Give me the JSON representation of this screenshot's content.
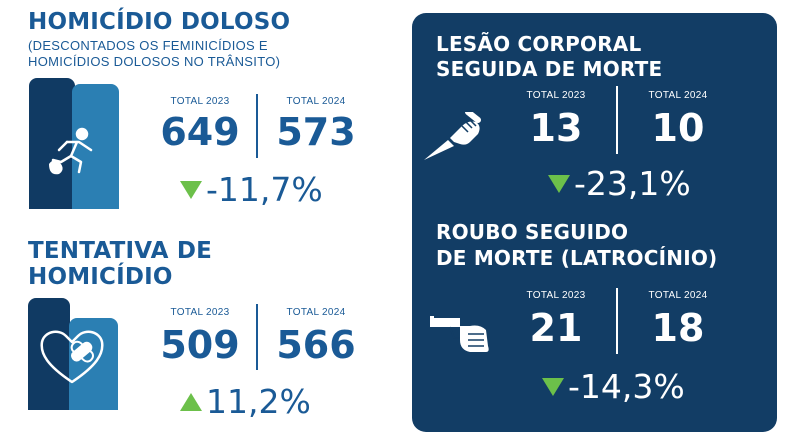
{
  "homicidio": {
    "title": "HOMICÍDIO DOLOSO",
    "subtitle_line1": "(DESCONTADOS OS FEMINICÍDIOS E",
    "subtitle_line2": "HOMICÍDIOS DOLOSOS NO TRÂNSITO)",
    "label_2023": "TOTAL 2023",
    "label_2024": "TOTAL 2024",
    "value_2023": "649",
    "value_2024": "573",
    "change": "-11,7%",
    "change_direction": "down",
    "icon": "fleeing-person-icon"
  },
  "tentativa": {
    "title_line1": "TENTATIVA DE",
    "title_line2": "HOMICÍDIO",
    "label_2023": "TOTAL 2023",
    "label_2024": "TOTAL 2024",
    "value_2023": "509",
    "value_2024": "566",
    "change": "11,2%",
    "change_direction": "up",
    "icon": "bandaged-heart-icon"
  },
  "lesao": {
    "title_line1": "LESÃO CORPORAL",
    "title_line2": "SEGUIDA DE MORTE",
    "label_2023": "TOTAL  2023",
    "label_2024": "TOTAL  2024",
    "value_2023": "13",
    "value_2024": "10",
    "change": "-23,1%",
    "change_direction": "down",
    "icon": "knife-hand-icon"
  },
  "roubo": {
    "title_line1": "ROUBO SEGUIDO",
    "title_line2": "DE MORTE (LATROCÍNIO)",
    "label_2023": "TOTAL  2023",
    "label_2024": "TOTAL  2024",
    "value_2023": "21",
    "value_2024": "18",
    "change": "-14,3%",
    "change_direction": "down",
    "icon": "gun-hand-icon"
  },
  "colors": {
    "primary_blue": "#1a5a96",
    "dark_navy": "#123d65",
    "light_blue": "#2b7fb3",
    "green": "#6cc04a",
    "white": "#ffffff"
  }
}
